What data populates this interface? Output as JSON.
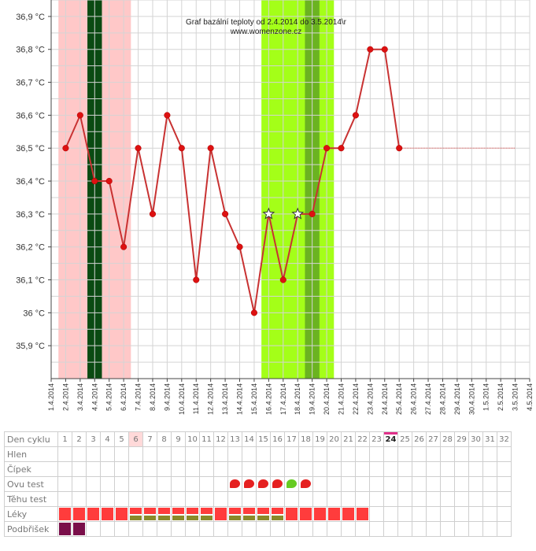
{
  "chart_data": {
    "type": "line",
    "title": "Graf bazální teploty od 2.4.2014 do 3.5.2014\\r",
    "subtitle": "www.womenzone.cz",
    "x_labels": [
      "1.4.2014",
      "2.4.2014",
      "3.4.2014",
      "4.4.2014",
      "5.4.2014",
      "6.4.2014",
      "7.4.2014",
      "8.4.2014",
      "9.4.2014",
      "10.4.2014",
      "11.4.2014",
      "12.4.2014",
      "13.4.2014",
      "14.4.2014",
      "15.4.2014",
      "16.4.2014",
      "17.4.2014",
      "18.4.2014",
      "19.4.2014",
      "20.4.2014",
      "21.4.2014",
      "22.4.2014",
      "23.4.2014",
      "24.4.2014",
      "25.4.2014",
      "26.4.2014",
      "27.4.2014",
      "28.4.2014",
      "29.4.2014",
      "30.4.2014",
      "1.5.2014",
      "2.5.2014",
      "3.5.2014",
      "4.5.2014"
    ],
    "y_ticks": [
      "35,9 °C",
      "36 °C",
      "36,1 °C",
      "36,2 °C",
      "36,3 °C",
      "36,4 °C",
      "36,5 °C",
      "36,6 °C",
      "36,7 °C",
      "36,8 °C",
      "36,9 °C"
    ],
    "ylim": [
      35.8,
      36.95
    ],
    "series": [
      {
        "values": [
          36.5,
          36.6,
          36.4,
          36.4,
          36.2,
          36.5,
          36.3,
          36.6,
          36.5,
          36.1,
          36.5,
          36.3,
          36.2,
          36.0,
          36.3,
          36.1,
          36.3,
          36.3,
          36.5,
          36.5,
          36.6,
          36.8,
          36.8,
          36.5
        ],
        "star_days": [
          15,
          17
        ],
        "color": "#c83232"
      }
    ],
    "projection": {
      "from_day": 24,
      "to_day": 32,
      "value": 36.5,
      "color": "#e08080"
    },
    "bands": [
      {
        "from_day": 0,
        "to_day": 5,
        "color": "#ffc8c8"
      },
      {
        "from_day": 2,
        "to_day": 3,
        "color": "#0a4a12"
      },
      {
        "from_day": 14,
        "to_day": 19,
        "color": "#a4ff18"
      },
      {
        "from_day": 17,
        "to_day": 18,
        "color": "#6bb321"
      }
    ],
    "grid": true
  },
  "table": {
    "row_labels": [
      "Den cyklu",
      "Hlen",
      "Čípek",
      "Ovu test",
      "Těhu test",
      "Léky",
      "Podbřišek"
    ],
    "days": [
      "1",
      "2",
      "3",
      "4",
      "5",
      "6",
      "7",
      "8",
      "9",
      "10",
      "11",
      "12",
      "13",
      "14",
      "15",
      "16",
      "17",
      "18",
      "19",
      "20",
      "21",
      "22",
      "23",
      "24",
      "25",
      "26",
      "27",
      "28",
      "29",
      "30",
      "31",
      "32"
    ],
    "highlight_day": "6",
    "today": "24",
    "ovu_test": {
      "red_days": [
        13,
        14,
        15,
        16,
        18
      ],
      "green_days": [
        17
      ],
      "red": "#e52020",
      "green": "#66cc22"
    },
    "leky": {
      "full_red_days": [
        1,
        2,
        3,
        4,
        5,
        12,
        17,
        18,
        19,
        20,
        21,
        22
      ],
      "half_days": [
        6,
        7,
        8,
        9,
        10,
        11,
        13,
        14,
        15,
        16
      ]
    },
    "podbrisek": {
      "days": [
        1,
        2
      ]
    }
  }
}
